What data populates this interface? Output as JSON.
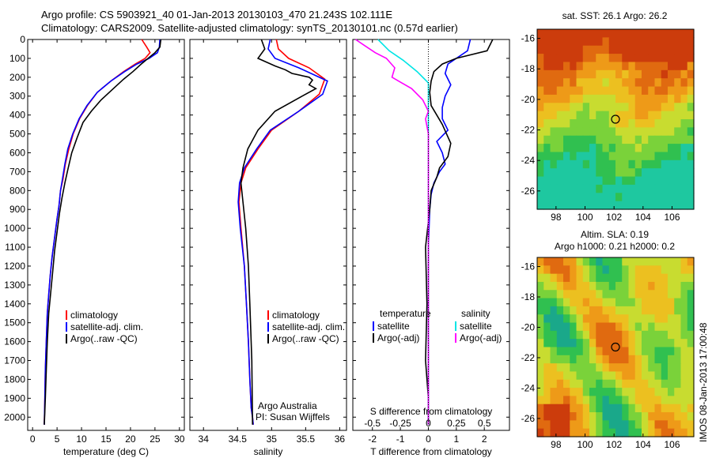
{
  "header": {
    "title_line1": "Argo profile: CS 5903921_40 01-Jan-2013 20130103_470 21.243S 102.111E",
    "title_line2": "Climatology: CARS2009. Satellite-adjusted climatology: synTS_20130101.nc (0.57d earlier)"
  },
  "depth_ticks": [
    0,
    100,
    200,
    300,
    400,
    500,
    600,
    700,
    800,
    900,
    1000,
    1100,
    1200,
    1300,
    1400,
    1500,
    1600,
    1700,
    1800,
    1900,
    2000
  ],
  "colors": {
    "climatology": "#ff0000",
    "satellite": "#0000ff",
    "argo": "#000000",
    "salinity_sat": "#00e5e5",
    "salinity_argo": "#ff00ff"
  },
  "chart_data": [
    {
      "type": "line",
      "id": "temperature",
      "xlabel": "temperature (deg C)",
      "ylabel": "",
      "xlim": [
        -1,
        31
      ],
      "ylim": [
        2070,
        0
      ],
      "xticks": [
        0,
        5,
        10,
        15,
        20,
        25,
        30
      ],
      "legend": {
        "placement": "bottom-center",
        "entries": [
          "climatology",
          "satellite-adj. clim.",
          "Argo(..raw -QC)"
        ]
      },
      "series": [
        {
          "name": "climatology",
          "color": "#ff0000",
          "x": [
            22.3,
            23.3,
            24.0,
            23.0,
            21.0,
            18.6,
            16.0,
            13.2,
            11.2,
            9.6,
            8.3,
            7.4,
            6.7,
            6.2,
            5.7,
            5.4,
            5.0,
            4.5,
            4.0,
            3.6,
            3.3,
            3.0,
            2.8,
            2.6,
            2.5,
            2.4
          ],
          "y": [
            0,
            40,
            70,
            100,
            130,
            170,
            220,
            280,
            350,
            420,
            500,
            580,
            660,
            740,
            800,
            880,
            950,
            1050,
            1150,
            1250,
            1350,
            1450,
            1600,
            1750,
            1900,
            2040
          ]
        },
        {
          "name": "satellite-adj. clim.",
          "color": "#0000ff",
          "x": [
            26.0,
            25.9,
            25.5,
            23.8,
            21.3,
            18.8,
            16.0,
            13.2,
            11.1,
            9.5,
            8.2,
            7.2,
            6.6,
            6.1,
            5.7,
            5.4,
            5.0,
            4.5,
            4.0,
            3.6,
            3.3,
            3.0,
            2.8,
            2.6,
            2.5,
            2.4
          ],
          "y": [
            0,
            40,
            70,
            100,
            130,
            170,
            220,
            280,
            350,
            420,
            500,
            580,
            660,
            740,
            800,
            880,
            950,
            1050,
            1150,
            1250,
            1350,
            1450,
            1600,
            1750,
            1900,
            2040
          ]
        },
        {
          "name": "Argo(..raw -QC)",
          "color": "#000000",
          "x": [
            26.2,
            26.0,
            25.0,
            23.6,
            22.2,
            20.5,
            18.6,
            16.5,
            14.0,
            12.0,
            10.3,
            9.1,
            8.0,
            7.2,
            6.6,
            6.0,
            5.5,
            5.0,
            4.5,
            4.1,
            3.7,
            3.3,
            3.0,
            2.8,
            2.6,
            2.4
          ],
          "y": [
            0,
            40,
            70,
            100,
            130,
            170,
            210,
            260,
            320,
            380,
            440,
            520,
            600,
            690,
            760,
            840,
            920,
            1020,
            1120,
            1230,
            1340,
            1450,
            1600,
            1750,
            1900,
            2040
          ]
        }
      ]
    },
    {
      "type": "line",
      "id": "salinity",
      "xlabel": "salinity",
      "ylabel": "",
      "xlim": [
        33.8,
        36.1
      ],
      "ylim": [
        2070,
        0
      ],
      "xticks": [
        34,
        34.5,
        35,
        35.5,
        36
      ],
      "legend": {
        "placement": "center",
        "entries": [
          "climatology",
          "satellite-adj. clim.",
          "Argo(..raw -QC)"
        ]
      },
      "annotations": [
        "Argo Australia",
        "PI: Susan Wijffels"
      ],
      "series": [
        {
          "name": "climatology",
          "color": "#ff0000",
          "x": [
            35.07,
            35.1,
            35.25,
            35.55,
            35.78,
            35.7,
            35.4,
            35.0,
            34.8,
            34.62,
            34.55,
            34.52,
            34.55,
            34.6,
            34.63,
            34.66,
            34.68,
            34.7,
            34.72,
            34.73
          ],
          "y": [
            0,
            50,
            100,
            150,
            210,
            290,
            380,
            480,
            580,
            680,
            760,
            860,
            1000,
            1200,
            1400,
            1600,
            1800,
            1950,
            2000,
            2040
          ]
        },
        {
          "name": "satellite-adj. clim.",
          "color": "#0000ff",
          "x": [
            34.98,
            34.95,
            35.05,
            35.4,
            35.82,
            35.75,
            35.4,
            34.98,
            34.78,
            34.6,
            34.53,
            34.51,
            34.54,
            34.6,
            34.63,
            34.66,
            34.68,
            34.7,
            34.72,
            34.73
          ],
          "y": [
            0,
            50,
            100,
            150,
            220,
            290,
            380,
            480,
            580,
            680,
            760,
            860,
            1000,
            1200,
            1400,
            1600,
            1800,
            1950,
            2000,
            2040
          ]
        },
        {
          "name": "Argo(..raw -QC)",
          "color": "#000000",
          "x": [
            34.85,
            34.9,
            34.8,
            35.05,
            35.2,
            35.3,
            35.55,
            35.6,
            35.55,
            35.65,
            35.45,
            35.05,
            34.8,
            34.65,
            34.58,
            34.55,
            34.58,
            34.62,
            34.66,
            34.68,
            34.71,
            34.72
          ],
          "y": [
            0,
            50,
            100,
            140,
            160,
            180,
            200,
            215,
            240,
            260,
            300,
            380,
            480,
            580,
            680,
            760,
            860,
            1000,
            1200,
            1400,
            1700,
            2040
          ]
        }
      ]
    },
    {
      "type": "line",
      "id": "difference",
      "xlabel": "T difference from climatology",
      "xlabel_top": "S difference from climatology",
      "xlim": [
        -2.7,
        2.9
      ],
      "ylim": [
        2070,
        0
      ],
      "xticks": [
        -2,
        -1,
        0,
        1,
        2
      ],
      "xticks_top": [
        -0.5,
        -0.25,
        0,
        0.25,
        0.5
      ],
      "xticks_top_labels": [
        "-0.5",
        "-0.25",
        "0",
        "0.25",
        "0.5"
      ],
      "legend": {
        "placement": "center",
        "headers": [
          "temperature",
          "salinity"
        ],
        "entries": [
          "satellite",
          "Argo(-adj)",
          "satellite",
          "Argo(-adj)"
        ]
      },
      "series": [
        {
          "name": "temperature satellite",
          "color": "#0000ff",
          "x": [
            1.5,
            1.4,
            0.7,
            0.6,
            0.8,
            0.6,
            0.5,
            0.5,
            0.7,
            0.3,
            0.5,
            0.6,
            0.4,
            0.2,
            0.1,
            0.05,
            0,
            0,
            0,
            0
          ],
          "y": [
            0,
            60,
            130,
            180,
            240,
            300,
            360,
            420,
            480,
            540,
            600,
            660,
            700,
            760,
            820,
            900,
            1100,
            1400,
            1800,
            2040
          ]
        },
        {
          "name": "temperature Argo(-adj)",
          "color": "#000000",
          "x": [
            2.3,
            2.1,
            1.0,
            0.5,
            0.2,
            0.1,
            0.05,
            0.1,
            0.3,
            0.5,
            0.8,
            0.7,
            0.4,
            0.3,
            0.1,
            0.05,
            -0.1,
            -0.05,
            -0.1,
            0,
            0
          ],
          "y": [
            0,
            60,
            100,
            130,
            170,
            220,
            280,
            350,
            400,
            450,
            550,
            620,
            680,
            730,
            800,
            900,
            1100,
            1400,
            1700,
            1900,
            2040
          ]
        },
        {
          "name": "salinity satellite",
          "color": "#00e5e5",
          "x": [
            -1.8,
            -1.4,
            -0.9,
            -0.4,
            0,
            0,
            0,
            0,
            0,
            0
          ],
          "y": [
            0,
            60,
            110,
            170,
            230,
            300,
            600,
            1000,
            1600,
            2040
          ]
        },
        {
          "name": "salinity Argo(-adj)",
          "color": "#ff00ff",
          "x": [
            -2.6,
            -2.3,
            -1.9,
            -1.5,
            -1.2,
            -1.3,
            -0.6,
            -0.2,
            0,
            -0.1,
            0,
            0,
            0,
            0,
            0
          ],
          "y": [
            0,
            30,
            70,
            100,
            150,
            200,
            260,
            320,
            380,
            420,
            500,
            700,
            1000,
            1600,
            2040
          ]
        }
      ]
    },
    {
      "type": "heatmap",
      "id": "sst_map",
      "title": "sat. SST: 26.1  Argo: 26.2",
      "xticks": [
        98,
        100,
        102,
        104,
        106
      ],
      "yticks": [
        -16,
        -18,
        -20,
        -22,
        -24,
        -26
      ],
      "xlim": [
        96.7,
        107.5
      ],
      "ylim": [
        -27.2,
        -15.4
      ],
      "marker": {
        "lon": 102.1,
        "lat": -21.3
      },
      "colorscale": [
        "#1ec8a0",
        "#30c050",
        "#7ad23a",
        "#c8dc30",
        "#ecc020",
        "#ee9a18",
        "#e06a10",
        "#cc3c0c"
      ]
    },
    {
      "type": "heatmap",
      "id": "sla_map",
      "title_line1": "Altim. SLA: 0.19",
      "title_line2": "Argo h1000: 0.21 h2000: 0.2",
      "xticks": [
        98,
        100,
        102,
        104,
        106
      ],
      "yticks": [
        -16,
        -18,
        -20,
        -22,
        -24,
        -26
      ],
      "xlim": [
        96.7,
        107.5
      ],
      "ylim": [
        -27.2,
        -15.4
      ],
      "marker": {
        "lon": 102.1,
        "lat": -21.3
      },
      "colorscale": [
        "#1aa88a",
        "#30c050",
        "#7ad23a",
        "#c8dc30",
        "#ecc020",
        "#ee9a18",
        "#e06a10",
        "#cc3c0c"
      ]
    }
  ],
  "stamp": "IMOS 08-Jan-2013 17:00:48"
}
